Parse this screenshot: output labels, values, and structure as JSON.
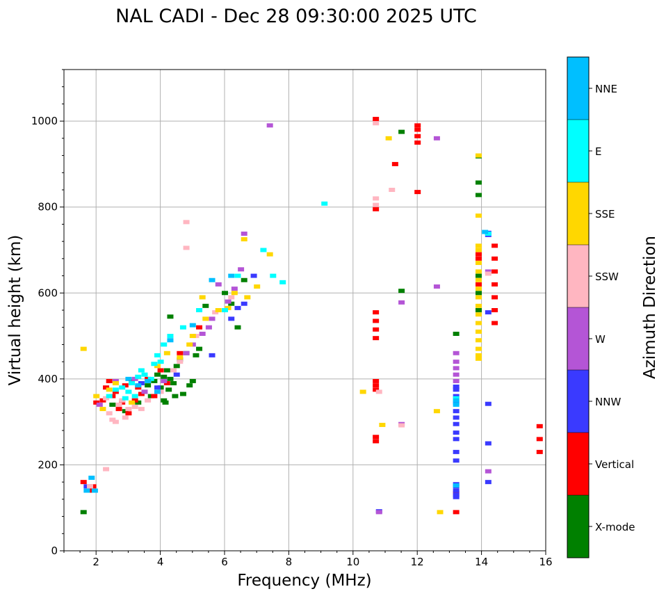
{
  "chart_data": {
    "type": "scatter",
    "title": "NAL CADI - Dec 28 09:30:00 2025 UTC",
    "xlabel": "Frequency (MHz)",
    "ylabel": "Virtual height (km)",
    "xlim": [
      1,
      16
    ],
    "ylim": [
      0,
      1120
    ],
    "xticks": [
      2,
      4,
      6,
      8,
      10,
      12,
      14,
      16
    ],
    "yticks": [
      0,
      200,
      400,
      600,
      800,
      1000
    ],
    "grid": true,
    "colorbar": {
      "label": "Azimuth Direction",
      "categories": [
        "X-mode",
        "Vertical",
        "NNW",
        "W",
        "SSW",
        "SSE",
        "E",
        "NNE"
      ],
      "colors": [
        "#008000",
        "#ff0000",
        "#3a3aff",
        "#b455d6",
        "#ffb6c1",
        "#ffd700",
        "#00ffff",
        "#00bfff"
      ]
    },
    "series": [
      {
        "name": "X-mode",
        "points": [
          [
            3.5,
            370
          ],
          [
            3.6,
            385
          ],
          [
            3.7,
            360
          ],
          [
            3.8,
            395
          ],
          [
            3.9,
            410
          ],
          [
            4.0,
            380
          ],
          [
            4.1,
            350
          ],
          [
            4.15,
            345
          ],
          [
            4.2,
            420
          ],
          [
            4.3,
            400
          ],
          [
            4.4,
            390
          ],
          [
            4.5,
            430
          ],
          [
            4.6,
            445
          ],
          [
            4.7,
            365
          ],
          [
            4.8,
            460
          ],
          [
            4.9,
            385
          ],
          [
            5.0,
            395
          ],
          [
            5.1,
            455
          ],
          [
            5.2,
            470
          ],
          [
            4.3,
            545
          ],
          [
            5.4,
            570
          ],
          [
            2.5,
            340
          ],
          [
            2.9,
            325
          ],
          [
            3.3,
            345
          ],
          [
            6.0,
            600
          ],
          [
            6.2,
            575
          ],
          [
            6.4,
            520
          ],
          [
            6.6,
            630
          ],
          [
            1.6,
            90
          ],
          [
            11.5,
            605
          ],
          [
            11.5,
            975
          ],
          [
            13.2,
            505
          ],
          [
            13.9,
            918
          ],
          [
            13.9,
            857
          ],
          [
            13.9,
            828
          ],
          [
            13.9,
            640
          ],
          [
            13.9,
            600
          ],
          [
            13.9,
            560
          ],
          [
            4.1,
            405
          ],
          [
            4.25,
            375
          ],
          [
            4.45,
            360
          ]
        ]
      },
      {
        "name": "Vertical",
        "points": [
          [
            2.3,
            380
          ],
          [
            2.4,
            395
          ],
          [
            2.5,
            360
          ],
          [
            2.6,
            370
          ],
          [
            2.7,
            330
          ],
          [
            2.8,
            345
          ],
          [
            2.9,
            385
          ],
          [
            3.0,
            320
          ],
          [
            3.1,
            395
          ],
          [
            3.2,
            350
          ],
          [
            3.3,
            380
          ],
          [
            3.4,
            365
          ],
          [
            3.6,
            400
          ],
          [
            3.8,
            360
          ],
          [
            4.0,
            420
          ],
          [
            4.2,
            390
          ],
          [
            4.6,
            460
          ],
          [
            5.2,
            520
          ],
          [
            2.0,
            345
          ],
          [
            2.2,
            350
          ],
          [
            1.6,
            160
          ],
          [
            1.8,
            140
          ],
          [
            1.9,
            150
          ],
          [
            10.7,
            1005
          ],
          [
            10.7,
            795
          ],
          [
            10.7,
            495
          ],
          [
            10.7,
            515
          ],
          [
            10.7,
            535
          ],
          [
            10.7,
            555
          ],
          [
            10.7,
            375
          ],
          [
            10.7,
            385
          ],
          [
            10.7,
            395
          ],
          [
            10.7,
            255
          ],
          [
            10.7,
            265
          ],
          [
            11.3,
            900
          ],
          [
            12.0,
            835
          ],
          [
            12.0,
            950
          ],
          [
            12.0,
            965
          ],
          [
            12.0,
            980
          ],
          [
            12.0,
            990
          ],
          [
            13.2,
            135
          ],
          [
            13.2,
            90
          ],
          [
            13.9,
            690
          ],
          [
            13.9,
            680
          ],
          [
            13.9,
            620
          ],
          [
            14.4,
            530
          ],
          [
            14.4,
            560
          ],
          [
            14.4,
            590
          ],
          [
            14.4,
            620
          ],
          [
            14.4,
            650
          ],
          [
            14.4,
            680
          ],
          [
            14.4,
            710
          ],
          [
            15.8,
            230
          ],
          [
            15.8,
            260
          ],
          [
            15.8,
            290
          ]
        ]
      },
      {
        "name": "NNW",
        "points": [
          [
            3.4,
            390
          ],
          [
            3.9,
            380
          ],
          [
            4.5,
            410
          ],
          [
            5.6,
            455
          ],
          [
            6.2,
            540
          ],
          [
            6.4,
            565
          ],
          [
            6.6,
            575
          ],
          [
            6.9,
            640
          ],
          [
            1.7,
            150
          ],
          [
            10.8,
            92
          ],
          [
            13.2,
            155
          ],
          [
            13.2,
            150
          ],
          [
            13.2,
            140
          ],
          [
            13.2,
            130
          ],
          [
            13.2,
            125
          ],
          [
            13.2,
            210
          ],
          [
            13.2,
            230
          ],
          [
            13.2,
            260
          ],
          [
            13.2,
            275
          ],
          [
            13.2,
            295
          ],
          [
            13.2,
            310
          ],
          [
            13.2,
            325
          ],
          [
            13.2,
            345
          ],
          [
            13.2,
            360
          ],
          [
            13.2,
            375
          ],
          [
            13.2,
            382
          ],
          [
            14.2,
            740
          ],
          [
            14.2,
            735
          ],
          [
            14.2,
            555
          ],
          [
            14.2,
            342
          ],
          [
            14.2,
            250
          ],
          [
            14.2,
            160
          ]
        ]
      },
      {
        "name": "W",
        "points": [
          [
            2.6,
            395
          ],
          [
            3.2,
            400
          ],
          [
            3.5,
            370
          ],
          [
            4.1,
            395
          ],
          [
            4.8,
            460
          ],
          [
            5.0,
            480
          ],
          [
            5.3,
            505
          ],
          [
            5.5,
            520
          ],
          [
            5.6,
            540
          ],
          [
            6.0,
            560
          ],
          [
            6.1,
            580
          ],
          [
            6.3,
            610
          ],
          [
            6.5,
            655
          ],
          [
            6.6,
            738
          ],
          [
            5.8,
            620
          ],
          [
            2.1,
            340
          ],
          [
            7.4,
            990
          ],
          [
            10.8,
            90
          ],
          [
            11.5,
            295
          ],
          [
            11.5,
            578
          ],
          [
            12.6,
            960
          ],
          [
            12.6,
            615
          ],
          [
            13.2,
            460
          ],
          [
            13.2,
            440
          ],
          [
            13.2,
            425
          ],
          [
            13.2,
            410
          ],
          [
            13.2,
            395
          ],
          [
            14.2,
            185
          ],
          [
            14.2,
            650
          ]
        ]
      },
      {
        "name": "SSW",
        "points": [
          [
            2.4,
            320
          ],
          [
            2.5,
            305
          ],
          [
            2.6,
            300
          ],
          [
            2.7,
            340
          ],
          [
            2.8,
            350
          ],
          [
            2.9,
            310
          ],
          [
            3.0,
            330
          ],
          [
            3.2,
            335
          ],
          [
            3.4,
            330
          ],
          [
            3.6,
            350
          ],
          [
            2.3,
            355
          ],
          [
            4.0,
            370
          ],
          [
            4.4,
            420
          ],
          [
            4.6,
            440
          ],
          [
            4.8,
            765
          ],
          [
            4.8,
            705
          ],
          [
            5.1,
            500
          ],
          [
            5.7,
            555
          ],
          [
            6.2,
            590
          ],
          [
            1.8,
            150
          ],
          [
            2.3,
            190
          ],
          [
            10.7,
            820
          ],
          [
            10.7,
            805
          ],
          [
            10.7,
            995
          ],
          [
            11.2,
            840
          ],
          [
            10.8,
            370
          ],
          [
            11.5,
            292
          ],
          [
            14.2,
            645
          ]
        ]
      },
      {
        "name": "SSE",
        "points": [
          [
            1.6,
            470
          ],
          [
            2.2,
            330
          ],
          [
            2.0,
            360
          ],
          [
            2.4,
            375
          ],
          [
            2.6,
            390
          ],
          [
            3.1,
            345
          ],
          [
            3.6,
            395
          ],
          [
            3.9,
            430
          ],
          [
            4.2,
            460
          ],
          [
            4.6,
            450
          ],
          [
            4.9,
            480
          ],
          [
            5.0,
            500
          ],
          [
            5.4,
            540
          ],
          [
            5.8,
            560
          ],
          [
            6.1,
            565
          ],
          [
            6.3,
            600
          ],
          [
            6.6,
            725
          ],
          [
            6.7,
            590
          ],
          [
            7.0,
            615
          ],
          [
            7.4,
            690
          ],
          [
            5.3,
            590
          ],
          [
            10.3,
            370
          ],
          [
            10.9,
            293
          ],
          [
            11.1,
            960
          ],
          [
            12.6,
            325
          ],
          [
            12.7,
            90
          ],
          [
            13.9,
            920
          ],
          [
            13.9,
            780
          ],
          [
            13.9,
            710
          ],
          [
            13.9,
            700
          ],
          [
            13.9,
            670
          ],
          [
            13.9,
            650
          ],
          [
            13.9,
            630
          ],
          [
            13.9,
            610
          ],
          [
            13.9,
            590
          ],
          [
            13.9,
            570
          ],
          [
            13.9,
            550
          ],
          [
            13.9,
            530
          ],
          [
            13.9,
            510
          ],
          [
            13.9,
            490
          ],
          [
            13.9,
            470
          ],
          [
            13.9,
            455
          ],
          [
            13.9,
            447
          ]
        ]
      },
      {
        "name": "E",
        "points": [
          [
            2.4,
            360
          ],
          [
            2.6,
            375
          ],
          [
            2.8,
            380
          ],
          [
            3.0,
            370
          ],
          [
            3.1,
            390
          ],
          [
            3.3,
            405
          ],
          [
            3.4,
            420
          ],
          [
            3.5,
            410
          ],
          [
            3.7,
            400
          ],
          [
            3.8,
            435
          ],
          [
            3.9,
            455
          ],
          [
            4.0,
            440
          ],
          [
            4.1,
            480
          ],
          [
            4.3,
            500
          ],
          [
            4.7,
            520
          ],
          [
            5.2,
            560
          ],
          [
            6.0,
            560
          ],
          [
            6.4,
            640
          ],
          [
            7.2,
            700
          ],
          [
            7.5,
            640
          ],
          [
            7.8,
            625
          ],
          [
            2.9,
            355
          ],
          [
            3.2,
            360
          ],
          [
            9.1,
            808
          ],
          [
            13.2,
            355
          ],
          [
            14.2,
            738
          ]
        ]
      },
      {
        "name": "NNE",
        "points": [
          [
            3.0,
            400
          ],
          [
            3.3,
            385
          ],
          [
            3.6,
            395
          ],
          [
            3.9,
            370
          ],
          [
            4.3,
            490
          ],
          [
            5.0,
            525
          ],
          [
            5.6,
            630
          ],
          [
            6.2,
            640
          ],
          [
            1.7,
            140
          ],
          [
            1.85,
            170
          ],
          [
            1.95,
            140
          ],
          [
            13.2,
            152
          ],
          [
            13.2,
            350
          ],
          [
            13.2,
            340
          ],
          [
            14.1,
            742
          ]
        ]
      }
    ]
  }
}
